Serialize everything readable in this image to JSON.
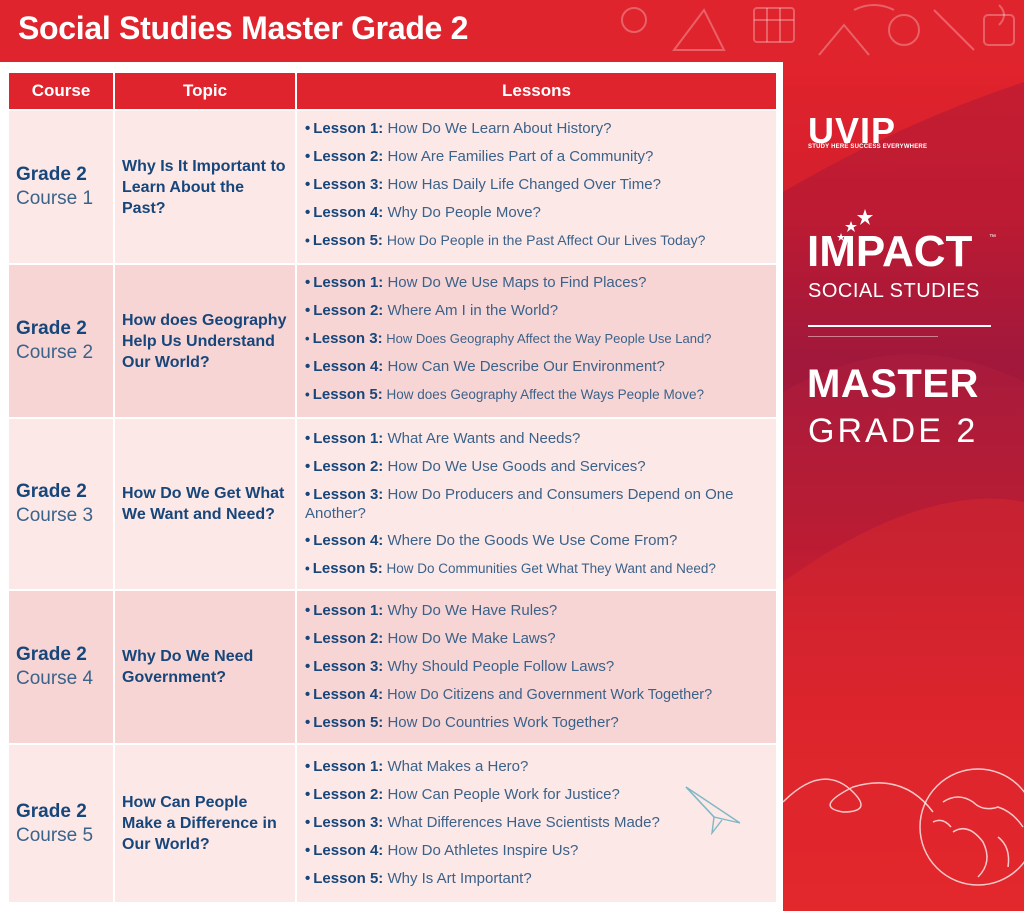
{
  "header": {
    "title": "Social Studies Master Grade 2"
  },
  "table": {
    "columns": [
      "Course",
      "Topic",
      "Lessons"
    ],
    "rows": [
      {
        "grade": "Grade 2",
        "course": "Course 1",
        "topic": "Why Is It Important to Learn About the Past?",
        "lessons": [
          {
            "num": "Lesson 1:",
            "text": "How Do We Learn About History?"
          },
          {
            "num": "Lesson 2:",
            "text": "How Are Families Part of a Community?"
          },
          {
            "num": "Lesson 3:",
            "text": "How Has Daily Life Changed Over Time?"
          },
          {
            "num": "Lesson 4:",
            "text": "Why Do People Move?"
          },
          {
            "num": "Lesson 5:",
            "text": "How Do People in the Past Affect Our Lives Today?"
          }
        ]
      },
      {
        "grade": "Grade 2",
        "course": "Course 2",
        "topic": "How does Geography Help Us Understand Our World?",
        "lessons": [
          {
            "num": "Lesson 1:",
            "text": "How Do We Use Maps to Find Places?"
          },
          {
            "num": "Lesson 2:",
            "text": "Where Am I in the World?"
          },
          {
            "num": "Lesson 3:",
            "text": "How Does Geography Affect the Way People Use Land?"
          },
          {
            "num": "Lesson 4:",
            "text": "How Can We Describe Our Environment?"
          },
          {
            "num": "Lesson 5:",
            "text": "How does Geography Affect the Ways People Move?"
          }
        ]
      },
      {
        "grade": "Grade 2",
        "course": "Course 3",
        "topic": "How Do We Get What We Want and Need?",
        "lessons": [
          {
            "num": "Lesson 1:",
            "text": "What Are Wants and Needs?"
          },
          {
            "num": "Lesson 2:",
            "text": "How Do We Use Goods and Services?"
          },
          {
            "num": "Lesson 3:",
            "text": "How Do Producers and Consumers Depend on One Another?"
          },
          {
            "num": "Lesson 4:",
            "text": "Where Do the Goods We Use Come From?"
          },
          {
            "num": "Lesson 5:",
            "text": "How Do Communities Get What They Want and Need?"
          }
        ]
      },
      {
        "grade": "Grade 2",
        "course": "Course 4",
        "topic": "Why Do We Need Government?",
        "lessons": [
          {
            "num": "Lesson 1:",
            "text": "Why Do We Have Rules?"
          },
          {
            "num": "Lesson 2:",
            "text": "How Do We Make Laws?"
          },
          {
            "num": "Lesson 3:",
            "text": "Why Should People Follow Laws?"
          },
          {
            "num": "Lesson 4:",
            "text": "How Do Citizens and Government Work Together?"
          },
          {
            "num": "Lesson 5:",
            "text": "How Do Countries Work Together?"
          }
        ]
      },
      {
        "grade": "Grade 2",
        "course": "Course 5",
        "topic": "How Can People Make a Difference in Our World?",
        "lessons": [
          {
            "num": "Lesson 1:",
            "text": "What Makes a Hero?"
          },
          {
            "num": "Lesson 2:",
            "text": "How Can People Work for Justice?"
          },
          {
            "num": "Lesson 3:",
            "text": "What Differences Have Scientists Made?"
          },
          {
            "num": "Lesson 4:",
            "text": "How Do Athletes Inspire Us?"
          },
          {
            "num": "Lesson 5:",
            "text": "Why Is Art Important?"
          }
        ]
      }
    ]
  },
  "sidebar": {
    "brand": "UVIP",
    "brand_tagline": "STUDY HERE SUCCESS EVERYWHERE",
    "product": "IMPACT",
    "trademark": "™",
    "product_sub": "SOCIAL STUDIES",
    "level": "MASTER",
    "grade": "GRADE 2"
  },
  "icons": {
    "bullet": "•",
    "banner_doodles": "school-doodles-icon",
    "globe": "globe-icon",
    "paper_plane": "paper-plane-icon",
    "stars": "stars-icon"
  },
  "colors": {
    "brand_red": "#e0242d",
    "navy_text": "#17467a",
    "row_light": "#fde8e8",
    "row_dark": "#f8d5d5"
  }
}
